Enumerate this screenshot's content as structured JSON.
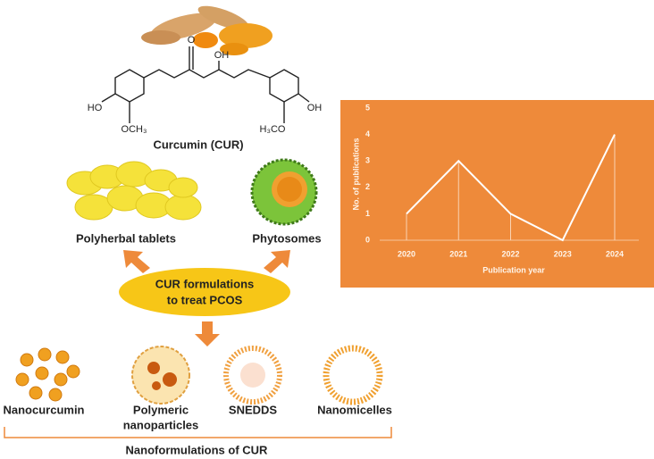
{
  "structure": {
    "ketone": "O",
    "enol": "OH",
    "hydroxy_left": "HO",
    "methoxy_left": "OCH₃",
    "methoxy_right": "H₃CO",
    "hydroxy_right": "OH",
    "name": "Curcumin (CUR)"
  },
  "formulations": {
    "tablets": "Polyherbal tablets",
    "phytosomes": "Phytosomes",
    "center": [
      "CUR formulations",
      "to treat PCOS"
    ]
  },
  "nano": {
    "items": [
      [
        "Nanocurcumin"
      ],
      [
        "Polymeric",
        "nanoparticles"
      ],
      [
        "SNEDDS"
      ],
      [
        "Nanomicelles"
      ]
    ],
    "group": "Nanoformulations of CUR"
  },
  "chart_data": {
    "type": "line",
    "categories": [
      "2020",
      "2021",
      "2022",
      "2023",
      "2024"
    ],
    "values": [
      1,
      3,
      1,
      0,
      4
    ],
    "color": "#ffffff",
    "x_label": "Publication year",
    "y_label": "No. of publications",
    "ylim": [
      0,
      5
    ],
    "yticks": [
      0,
      1,
      2,
      3,
      4,
      5
    ],
    "grid": false
  }
}
